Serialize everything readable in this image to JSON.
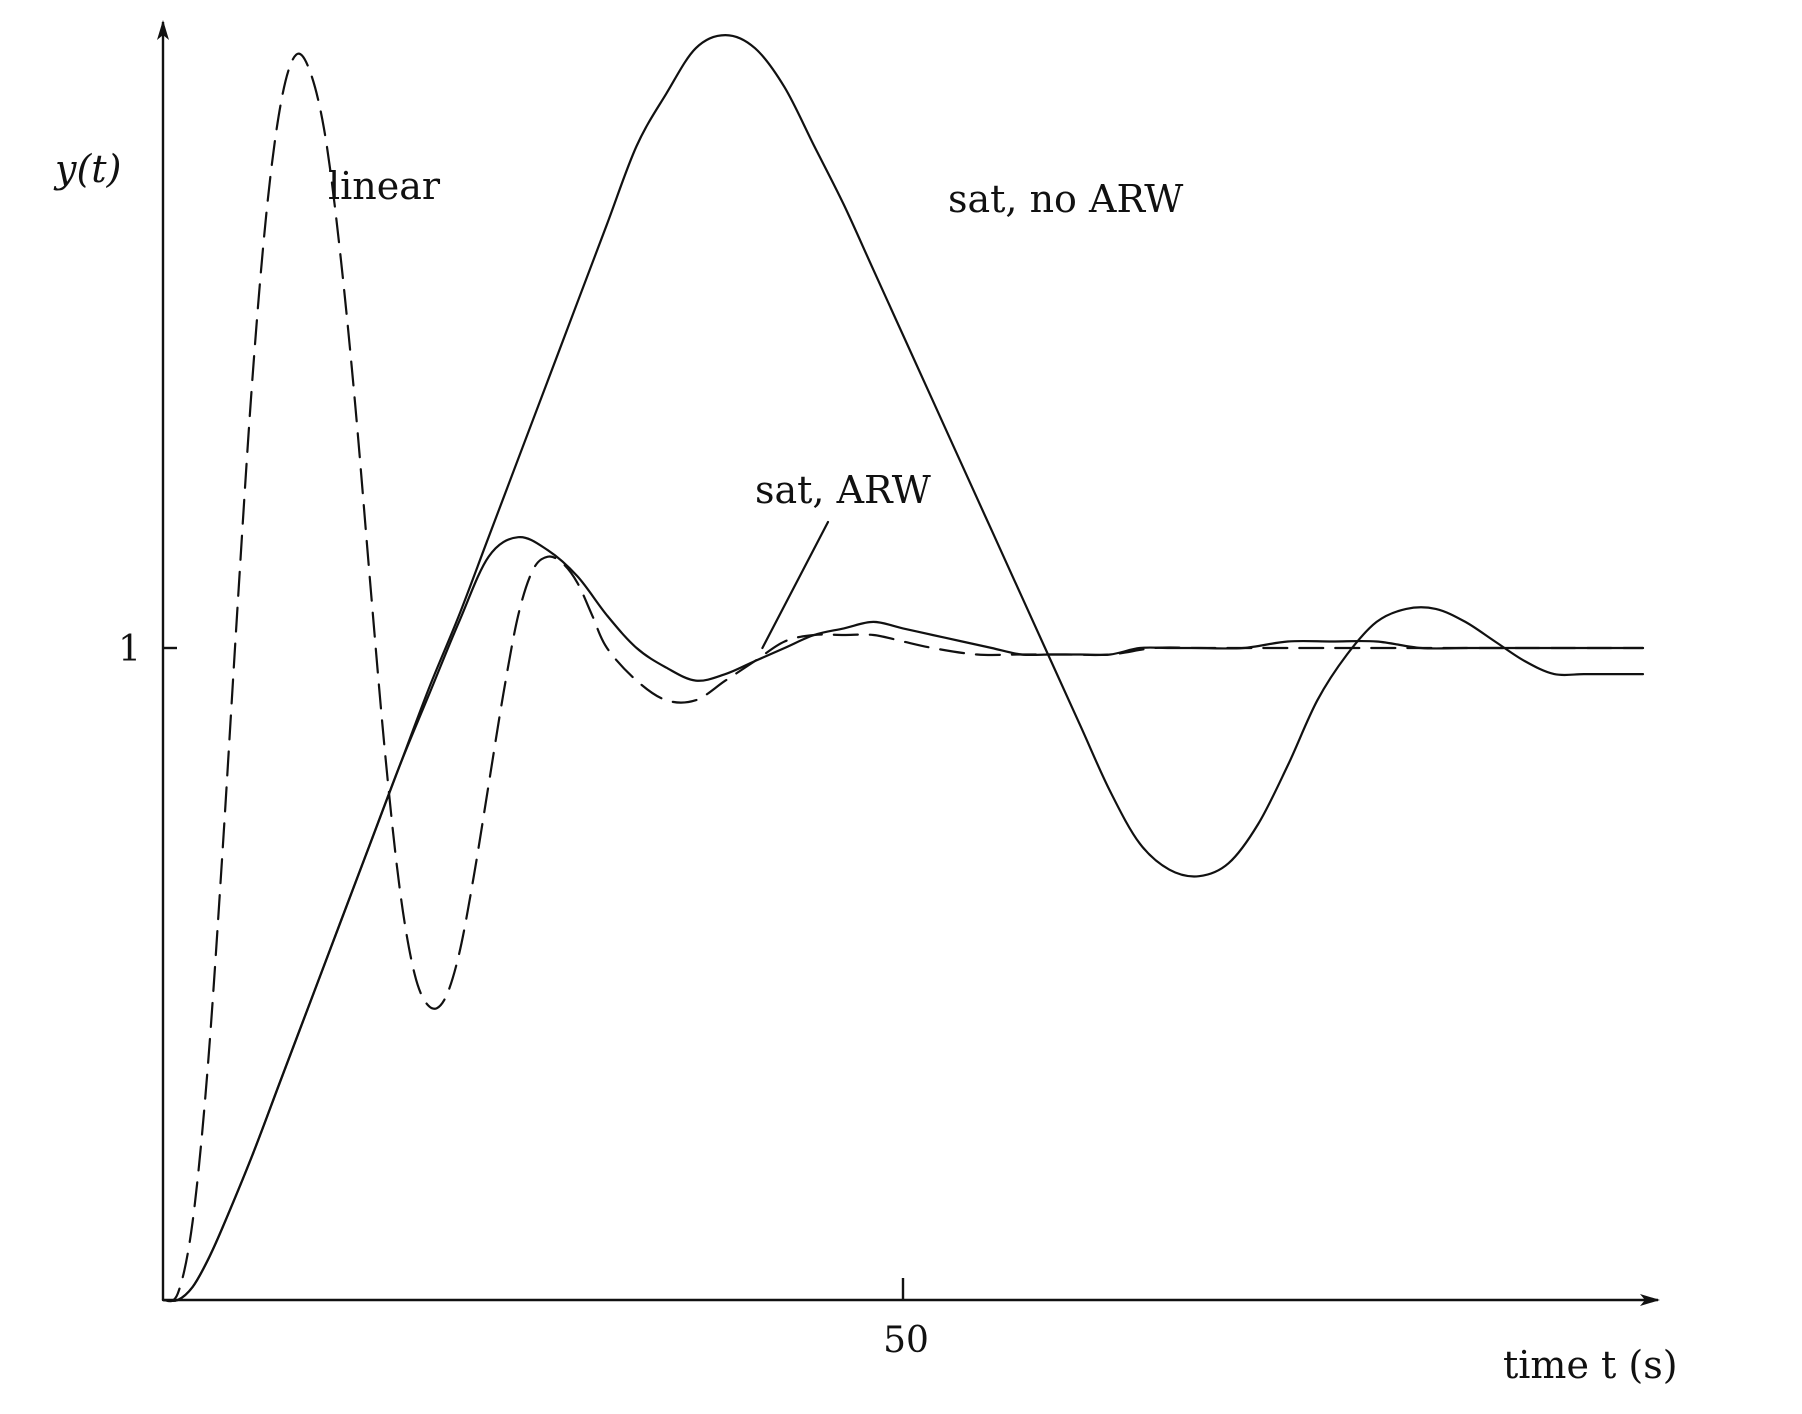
{
  "chart_data": {
    "type": "line",
    "ylabel": "y(t)",
    "xlabel": "time t (s)",
    "x_ticks": [
      50
    ],
    "x_tick_labels": [
      "50"
    ],
    "y_ticks": [
      1
    ],
    "y_tick_labels": [
      "1"
    ],
    "xlim": [
      0,
      101
    ],
    "ylim": [
      0,
      1.96
    ],
    "grid": false,
    "legend": "none (curves labeled inline)",
    "series": [
      {
        "name": "linear",
        "style": "dashed",
        "color": "#111111",
        "x": [
          0,
          1,
          2,
          3,
          4,
          5,
          6,
          7,
          8,
          9,
          10,
          11,
          12,
          13,
          14,
          15,
          16,
          17,
          18,
          19,
          20,
          21,
          22,
          23,
          24,
          25,
          26,
          27,
          28,
          29,
          30,
          32,
          34,
          36,
          38,
          40,
          42,
          44,
          46,
          48,
          50,
          52,
          55,
          58,
          61,
          64,
          67,
          70,
          73,
          76,
          80,
          85,
          90,
          95,
          100
        ],
        "y": [
          0.0,
          0.01,
          0.12,
          0.35,
          0.68,
          1.05,
          1.4,
          1.67,
          1.84,
          1.91,
          1.88,
          1.78,
          1.6,
          1.37,
          1.1,
          0.84,
          0.63,
          0.5,
          0.45,
          0.46,
          0.53,
          0.65,
          0.79,
          0.93,
          1.05,
          1.12,
          1.14,
          1.13,
          1.1,
          1.05,
          1.0,
          0.95,
          0.92,
          0.92,
          0.95,
          0.98,
          1.01,
          1.02,
          1.02,
          1.02,
          1.01,
          1.0,
          0.99,
          0.99,
          0.99,
          0.99,
          1.0,
          1.0,
          1.0,
          1.0,
          1.0,
          1.0,
          1.0,
          1.0,
          1.0
        ]
      },
      {
        "name": "sat, ARW",
        "style": "solid",
        "color": "#111111",
        "x": [
          0,
          1,
          2,
          3,
          4,
          6,
          8,
          10,
          12,
          14,
          16,
          18,
          20,
          22,
          24,
          26,
          28,
          30,
          32,
          34,
          36,
          38,
          40,
          42,
          44,
          46,
          48,
          50,
          52,
          54,
          56,
          58,
          60,
          62,
          64,
          66,
          68,
          70,
          73,
          76,
          79,
          82,
          85,
          88,
          91,
          94,
          97,
          100
        ],
        "y": [
          0.0,
          0.0,
          0.02,
          0.06,
          0.11,
          0.22,
          0.34,
          0.46,
          0.58,
          0.7,
          0.82,
          0.93,
          1.04,
          1.14,
          1.17,
          1.15,
          1.11,
          1.05,
          1.0,
          0.97,
          0.95,
          0.96,
          0.98,
          1.0,
          1.02,
          1.03,
          1.04,
          1.03,
          1.02,
          1.01,
          1.0,
          0.99,
          0.99,
          0.99,
          0.99,
          1.0,
          1.0,
          1.0,
          1.0,
          1.01,
          1.01,
          1.01,
          1.0,
          1.0,
          1.0,
          1.0,
          1.0,
          1.0
        ]
      },
      {
        "name": "sat, no ARW",
        "style": "solid",
        "color": "#111111",
        "x": [
          0,
          1,
          2,
          3,
          4,
          6,
          8,
          10,
          12,
          14,
          16,
          18,
          20,
          22,
          24,
          26,
          28,
          30,
          32,
          34,
          36,
          38,
          40,
          42,
          44,
          46,
          48,
          50,
          52,
          54,
          56,
          58,
          60,
          62,
          64,
          66,
          68,
          70,
          72,
          74,
          76,
          78,
          80,
          82,
          84,
          86,
          88,
          90,
          92,
          94,
          96,
          98,
          100
        ],
        "y": [
          0.0,
          0.0,
          0.02,
          0.06,
          0.11,
          0.22,
          0.34,
          0.46,
          0.58,
          0.7,
          0.82,
          0.94,
          1.05,
          1.17,
          1.29,
          1.41,
          1.53,
          1.65,
          1.77,
          1.85,
          1.92,
          1.94,
          1.92,
          1.86,
          1.77,
          1.68,
          1.58,
          1.48,
          1.38,
          1.28,
          1.18,
          1.08,
          0.98,
          0.88,
          0.78,
          0.7,
          0.66,
          0.65,
          0.67,
          0.73,
          0.82,
          0.92,
          0.99,
          1.04,
          1.06,
          1.06,
          1.04,
          1.01,
          0.98,
          0.96,
          0.96,
          0.96,
          0.96
        ]
      }
    ],
    "annotations": [
      {
        "text": "linear",
        "target_series": "linear"
      },
      {
        "text": "sat, no ARW",
        "target_series": "sat, no ARW"
      },
      {
        "text": "sat, ARW",
        "target_series": "sat, ARW",
        "pointer": {
          "x": 40.5,
          "y": 1.0
        }
      }
    ]
  }
}
